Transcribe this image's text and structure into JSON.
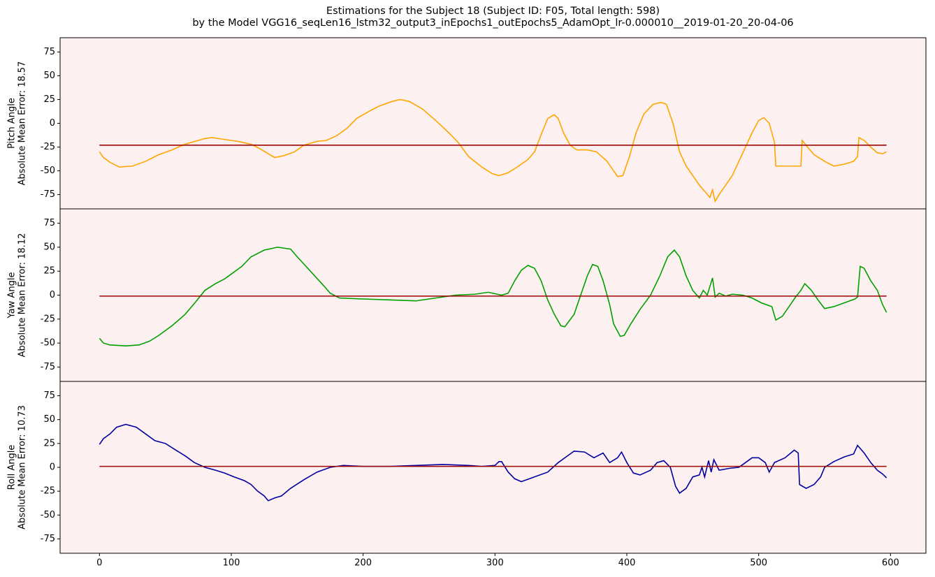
{
  "chart_data": [
    {
      "type": "line",
      "title": [
        "Estimations for the Subject 18 (Subject ID: F05, Total length: 598)",
        "by the Model VGG16_seqLen16_lstm32_output3_inEpochs1_outEpochs5_AdamOpt_lr-0.000010__2019-01-20_20-04-06"
      ],
      "ylabel": [
        "Pitch Angle",
        "Absolute Mean Error: 18.57"
      ],
      "background": "#fdf0f0",
      "xlim": [
        -29.85,
        626.85
      ],
      "ylim": [
        -90,
        90
      ],
      "yticks": [
        -75,
        -50,
        -25,
        0,
        25,
        50,
        75
      ],
      "series": [
        {
          "color": "#ffa500",
          "x": [
            0,
            3,
            8,
            15,
            25,
            35,
            45,
            55,
            65,
            75,
            80,
            85,
            95,
            105,
            115,
            122,
            128,
            133,
            140,
            148,
            155,
            165,
            172,
            180,
            188,
            195,
            205,
            212,
            222,
            228,
            235,
            245,
            255,
            265,
            272,
            280,
            290,
            298,
            303,
            310,
            318,
            325,
            330,
            335,
            340,
            345,
            348,
            352,
            357,
            362,
            370,
            377,
            385,
            390,
            393,
            397,
            402,
            407,
            413,
            420,
            426,
            430,
            435,
            440,
            445,
            450,
            455,
            460,
            463,
            465,
            467,
            470,
            475,
            480,
            485,
            490,
            495,
            500,
            504,
            508,
            512,
            513,
            520,
            532,
            533,
            537,
            542,
            550,
            557,
            565,
            572,
            575,
            576,
            580,
            585,
            590,
            594,
            597
          ],
          "values": [
            -30,
            -36,
            -41,
            -46,
            -45,
            -40,
            -33,
            -28,
            -22,
            -18,
            -16,
            -15,
            -17,
            -19,
            -22,
            -27,
            -32,
            -36,
            -34,
            -30,
            -23,
            -19,
            -18,
            -13,
            -5,
            5,
            13,
            18,
            23,
            25,
            23,
            15,
            3,
            -10,
            -20,
            -35,
            -46,
            -53,
            -55,
            -52,
            -45,
            -38,
            -30,
            -12,
            5,
            9,
            5,
            -10,
            -23,
            -28,
            -28,
            -30,
            -40,
            -50,
            -56,
            -55,
            -35,
            -10,
            10,
            20,
            22,
            20,
            0,
            -30,
            -45,
            -55,
            -65,
            -73,
            -78,
            -70,
            -82,
            -75,
            -65,
            -55,
            -40,
            -25,
            -10,
            3,
            6,
            0,
            -20,
            -45,
            -45,
            -45,
            -18,
            -25,
            -33,
            -40,
            -45,
            -43,
            -40,
            -35,
            -15,
            -18,
            -25,
            -31,
            -32,
            -30
          ]
        },
        {
          "color": "#a00000",
          "x": [
            0,
            597
          ],
          "values": [
            -23,
            -23
          ]
        }
      ]
    },
    {
      "type": "line",
      "ylabel": [
        "Yaw Angle",
        "Absolute Mean Error: 18.12"
      ],
      "background": "#fdf0f0",
      "xlim": [
        -29.85,
        626.85
      ],
      "ylim": [
        -90,
        90
      ],
      "yticks": [
        -75,
        -50,
        -25,
        0,
        25,
        50,
        75
      ],
      "series": [
        {
          "color": "#00a000",
          "x": [
            0,
            3,
            8,
            20,
            30,
            38,
            45,
            55,
            65,
            73,
            80,
            88,
            95,
            100,
            108,
            115,
            125,
            135,
            145,
            150,
            160,
            170,
            175,
            182,
            200,
            220,
            240,
            250,
            260,
            270,
            285,
            295,
            305,
            310,
            315,
            320,
            325,
            330,
            335,
            340,
            345,
            350,
            353,
            360,
            365,
            370,
            374,
            378,
            382,
            387,
            390,
            395,
            398,
            403,
            410,
            418,
            425,
            431,
            436,
            440,
            445,
            450,
            455,
            458,
            461,
            465,
            467,
            470,
            475,
            480,
            488,
            495,
            502,
            510,
            513,
            518,
            523,
            528,
            532,
            535,
            540,
            545,
            550,
            557,
            565,
            573,
            575,
            577,
            580,
            585,
            590,
            594,
            597
          ],
          "values": [
            -45,
            -50,
            -52,
            -53,
            -52,
            -48,
            -42,
            -32,
            -20,
            -7,
            5,
            12,
            17,
            22,
            30,
            40,
            47,
            50,
            48,
            40,
            25,
            10,
            2,
            -3,
            -4,
            -5,
            -6,
            -4,
            -2,
            0,
            1,
            3,
            0,
            2,
            15,
            26,
            31,
            28,
            15,
            -5,
            -20,
            -32,
            -33,
            -20,
            0,
            20,
            32,
            30,
            15,
            -10,
            -30,
            -43,
            -42,
            -30,
            -15,
            0,
            20,
            40,
            47,
            40,
            20,
            5,
            -3,
            5,
            0,
            18,
            -2,
            2,
            -1,
            1,
            0,
            -3,
            -8,
            -12,
            -26,
            -22,
            -12,
            -2,
            5,
            12,
            5,
            -5,
            -14,
            -12,
            -8,
            -4,
            -2,
            30,
            28,
            15,
            5,
            -10,
            -18
          ]
        },
        {
          "color": "#a00000",
          "x": [
            0,
            597
          ],
          "values": [
            -1,
            -1
          ]
        }
      ]
    },
    {
      "type": "line",
      "ylabel": [
        "Roll Angle",
        "Absolute Mean Error: 10.73"
      ],
      "background": "#fdf0f0",
      "xlim": [
        -29.85,
        626.85
      ],
      "ylim": [
        -90,
        90
      ],
      "yticks": [
        -75,
        -50,
        -25,
        0,
        25,
        50,
        75
      ],
      "xticks": [
        0,
        100,
        200,
        300,
        400,
        500,
        600
      ],
      "series": [
        {
          "color": "#0000a0",
          "x": [
            0,
            3,
            8,
            13,
            20,
            28,
            35,
            42,
            50,
            58,
            65,
            72,
            80,
            88,
            95,
            102,
            110,
            115,
            120,
            125,
            128,
            133,
            138,
            145,
            155,
            165,
            175,
            185,
            200,
            220,
            240,
            260,
            280,
            290,
            300,
            303,
            305,
            310,
            315,
            320,
            330,
            340,
            348,
            355,
            360,
            368,
            375,
            382,
            387,
            393,
            396,
            400,
            405,
            410,
            418,
            423,
            428,
            433,
            437,
            440,
            445,
            450,
            455,
            457,
            459,
            462,
            464,
            466,
            470,
            478,
            485,
            490,
            495,
            500,
            505,
            508,
            512,
            520,
            527,
            530,
            531,
            536,
            542,
            547,
            550,
            557,
            565,
            572,
            575,
            580,
            585,
            590,
            594,
            597
          ],
          "values": [
            24,
            30,
            35,
            42,
            45,
            42,
            35,
            28,
            25,
            18,
            12,
            5,
            0,
            -3,
            -6,
            -10,
            -14,
            -18,
            -25,
            -30,
            -35,
            -32,
            -30,
            -22,
            -13,
            -5,
            0,
            2,
            1,
            1,
            2,
            3,
            2,
            1,
            2,
            6,
            6,
            -5,
            -12,
            -15,
            -10,
            -5,
            5,
            12,
            17,
            16,
            10,
            15,
            5,
            10,
            16,
            5,
            -6,
            -8,
            -3,
            5,
            7,
            0,
            -20,
            -27,
            -22,
            -10,
            -8,
            0,
            -10,
            7,
            -5,
            8,
            -3,
            -1,
            0,
            5,
            10,
            10,
            5,
            -5,
            5,
            10,
            18,
            15,
            -18,
            -22,
            -18,
            -10,
            0,
            6,
            11,
            14,
            23,
            15,
            5,
            -3,
            -7,
            -11
          ]
        },
        {
          "color": "#a00000",
          "x": [
            0,
            597
          ],
          "values": [
            1,
            1
          ]
        }
      ]
    }
  ]
}
